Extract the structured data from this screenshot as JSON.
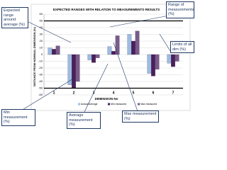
{
  "chart_data": {
    "type": "bar",
    "title": "EXPECTED RANGES WITH RELATION TO MEASUREMENTS RESULTS",
    "x_label": "DIMENSION No",
    "y_label": "DISTANCE FROM NOMINAL DIMENSION (%)",
    "categories": [
      "1",
      "2",
      "3",
      "4",
      "5",
      "6",
      "7"
    ],
    "series": [
      {
        "name": "Actual Average",
        "color": "#9dbbe3",
        "values": [
          10,
          -45,
          -8,
          12,
          30,
          -28,
          -13
        ]
      },
      {
        "name": "Min measured",
        "color": "#4b1f5c",
        "values": [
          8,
          -50,
          -12,
          5,
          20,
          -32,
          -18
        ]
      },
      {
        "name": "Max measured",
        "color": "#7a5a8c",
        "values": [
          13,
          -40,
          -5,
          28,
          35,
          -22,
          -10
        ]
      }
    ],
    "limits": [
      50,
      -50
    ],
    "ylim": [
      -60,
      60
    ],
    "yticks": [
      -60,
      -50,
      -40,
      -30,
      -20,
      -10,
      0,
      10,
      20,
      30,
      40,
      50,
      60
    ],
    "grid": true
  },
  "annotations": [
    "Expected range around average (%)",
    "Range of measurements (%)",
    "Limits of all dim (%)",
    "Min measurement (%)",
    "Average measurement (%)",
    "Max measurement (%)"
  ]
}
